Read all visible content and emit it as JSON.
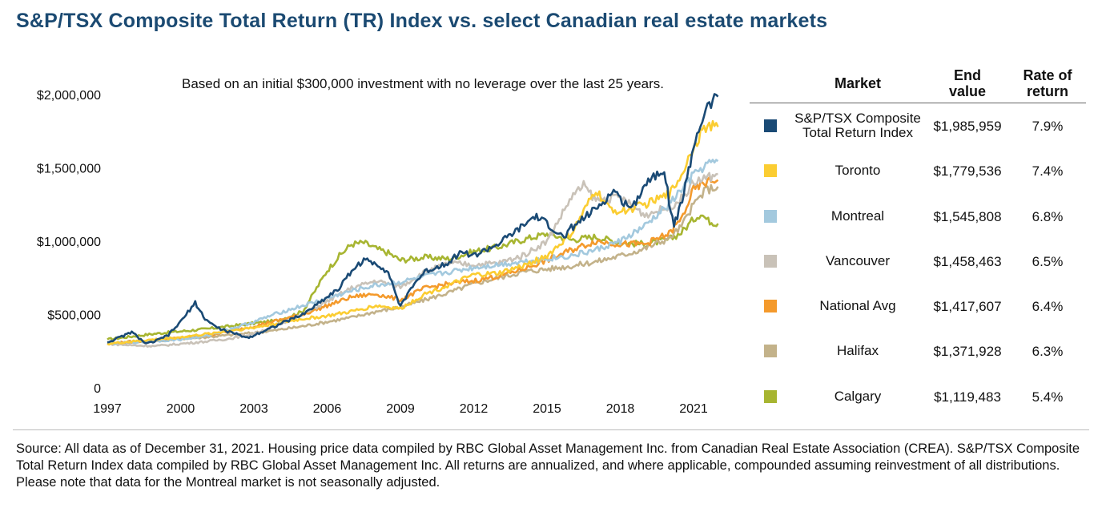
{
  "title": "S&P/TSX Composite Total Return (TR) Index vs. select Canadian real estate markets",
  "source_note": "Source: All data as of December 31, 2021. Housing price data compiled by RBC Global Asset Management Inc. from Canadian Real Estate Association (CREA). S&P/TSX Composite Total Return Index data compiled by RBC Global Asset Management Inc. All returns are annualized, and where applicable, compounded assuming reinvestment of all distributions. Please note that data for the Montreal market is not seasonally adjusted.",
  "table": {
    "headers": {
      "market": "Market",
      "end_value": [
        "End",
        "value"
      ],
      "rate": [
        "Rate of",
        "return"
      ]
    },
    "rows": [
      {
        "market": [
          "S&P/TSX Composite",
          "Total Return Index"
        ],
        "end_value": "$1,985,959",
        "rate": "7.9%",
        "color": "#1a4a75"
      },
      {
        "market": [
          "Toronto"
        ],
        "end_value": "$1,779,536",
        "rate": "7.4%",
        "color": "#fbcd32"
      },
      {
        "market": [
          "Montreal"
        ],
        "end_value": "$1,545,808",
        "rate": "6.8%",
        "color": "#a3c9de"
      },
      {
        "market": [
          "Vancouver"
        ],
        "end_value": "$1,458,463",
        "rate": "6.5%",
        "color": "#c9c2b8"
      },
      {
        "market": [
          "National Avg"
        ],
        "end_value": "$1,417,607",
        "rate": "6.4%",
        "color": "#f49a2c"
      },
      {
        "market": [
          "Halifax"
        ],
        "end_value": "$1,371,928",
        "rate": "6.3%",
        "color": "#c3b28a"
      },
      {
        "market": [
          "Calgary"
        ],
        "end_value": "$1,119,483",
        "rate": "5.4%",
        "color": "#a7b531"
      }
    ]
  },
  "chart_data": {
    "type": "line",
    "annotation": "Based on an initial $300,000 investment with no leverage over the last 25 years.",
    "y_ticks": [
      {
        "value": 0,
        "label": "0"
      },
      {
        "value": 500000,
        "label": "$500,000"
      },
      {
        "value": 1000000,
        "label": "$1,000,000"
      },
      {
        "value": 1500000,
        "label": "$1,500,000"
      },
      {
        "value": 2000000,
        "label": "$2,000,000"
      }
    ],
    "x_ticks": [
      1997,
      2000,
      2003,
      2006,
      2009,
      2012,
      2015,
      2018,
      2021
    ],
    "xlim": [
      1997,
      2022
    ],
    "ylim": [
      0,
      2000000
    ],
    "series": [
      {
        "name": "Calgary",
        "color": "#a7b531",
        "points": [
          [
            1997,
            330000
          ],
          [
            1998,
            350000
          ],
          [
            1999,
            370000
          ],
          [
            2000,
            385000
          ],
          [
            2001,
            400000
          ],
          [
            2002,
            420000
          ],
          [
            2003,
            440000
          ],
          [
            2004,
            460000
          ],
          [
            2005,
            520000
          ],
          [
            2006,
            800000
          ],
          [
            2006.5,
            900000
          ],
          [
            2007,
            980000
          ],
          [
            2007.5,
            990000
          ],
          [
            2008,
            950000
          ],
          [
            2008.5,
            920000
          ],
          [
            2009,
            870000
          ],
          [
            2009.5,
            880000
          ],
          [
            2010,
            890000
          ],
          [
            2011,
            880000
          ],
          [
            2012,
            930000
          ],
          [
            2013,
            960000
          ],
          [
            2014,
            1010000
          ],
          [
            2015,
            1050000
          ],
          [
            2016,
            1010000
          ],
          [
            2017,
            1030000
          ],
          [
            2018,
            990000
          ],
          [
            2019,
            980000
          ],
          [
            2020,
            1010000
          ],
          [
            2020.5,
            1060000
          ],
          [
            2021,
            1150000
          ],
          [
            2021.3,
            1190000
          ],
          [
            2021.6,
            1140000
          ],
          [
            2022,
            1119483
          ]
        ]
      },
      {
        "name": "Halifax",
        "color": "#c3b28a",
        "points": [
          [
            1997,
            300000
          ],
          [
            1998,
            310000
          ],
          [
            1999,
            320000
          ],
          [
            2000,
            335000
          ],
          [
            2001,
            345000
          ],
          [
            2002,
            360000
          ],
          [
            2003,
            375000
          ],
          [
            2004,
            395000
          ],
          [
            2005,
            420000
          ],
          [
            2006,
            450000
          ],
          [
            2007,
            480000
          ],
          [
            2008,
            520000
          ],
          [
            2009,
            550000
          ],
          [
            2010,
            600000
          ],
          [
            2011,
            650000
          ],
          [
            2012,
            710000
          ],
          [
            2013,
            750000
          ],
          [
            2014,
            790000
          ],
          [
            2015,
            810000
          ],
          [
            2016,
            830000
          ],
          [
            2017,
            860000
          ],
          [
            2018,
            900000
          ],
          [
            2019,
            950000
          ],
          [
            2020,
            1020000
          ],
          [
            2020.5,
            1100000
          ],
          [
            2021,
            1250000
          ],
          [
            2021.5,
            1350000
          ],
          [
            2022,
            1371928
          ]
        ]
      },
      {
        "name": "National Avg",
        "color": "#f49a2c",
        "points": [
          [
            1997,
            300000
          ],
          [
            1998,
            315000
          ],
          [
            1999,
            325000
          ],
          [
            2000,
            340000
          ],
          [
            2001,
            355000
          ],
          [
            2002,
            385000
          ],
          [
            2003,
            420000
          ],
          [
            2004,
            460000
          ],
          [
            2005,
            500000
          ],
          [
            2006,
            560000
          ],
          [
            2007,
            620000
          ],
          [
            2008,
            640000
          ],
          [
            2009,
            600000
          ],
          [
            2010,
            680000
          ],
          [
            2011,
            710000
          ],
          [
            2012,
            730000
          ],
          [
            2013,
            760000
          ],
          [
            2014,
            810000
          ],
          [
            2015,
            870000
          ],
          [
            2016,
            940000
          ],
          [
            2017,
            1000000
          ],
          [
            2018,
            980000
          ],
          [
            2019,
            980000
          ],
          [
            2020,
            1050000
          ],
          [
            2020.5,
            1150000
          ],
          [
            2021,
            1350000
          ],
          [
            2021.5,
            1400000
          ],
          [
            2022,
            1417607
          ]
        ]
      },
      {
        "name": "Vancouver",
        "color": "#c9c2b8",
        "points": [
          [
            1997,
            300000
          ],
          [
            1998,
            290000
          ],
          [
            1999,
            285000
          ],
          [
            2000,
            300000
          ],
          [
            2001,
            315000
          ],
          [
            2002,
            335000
          ],
          [
            2003,
            370000
          ],
          [
            2004,
            430000
          ],
          [
            2005,
            500000
          ],
          [
            2006,
            590000
          ],
          [
            2007,
            680000
          ],
          [
            2008,
            730000
          ],
          [
            2009,
            690000
          ],
          [
            2010,
            790000
          ],
          [
            2011,
            850000
          ],
          [
            2012,
            840000
          ],
          [
            2013,
            850000
          ],
          [
            2014,
            900000
          ],
          [
            2015,
            1000000
          ],
          [
            2016,
            1300000
          ],
          [
            2016.5,
            1380000
          ],
          [
            2017,
            1280000
          ],
          [
            2018,
            1300000
          ],
          [
            2019,
            1180000
          ],
          [
            2020,
            1230000
          ],
          [
            2020.5,
            1290000
          ],
          [
            2021,
            1400000
          ],
          [
            2022,
            1458463
          ]
        ]
      },
      {
        "name": "Montreal",
        "color": "#a3c9de",
        "points": [
          [
            1997,
            300000
          ],
          [
            1998,
            310000
          ],
          [
            1999,
            320000
          ],
          [
            2000,
            330000
          ],
          [
            2001,
            350000
          ],
          [
            2002,
            400000
          ],
          [
            2003,
            450000
          ],
          [
            2004,
            510000
          ],
          [
            2005,
            560000
          ],
          [
            2006,
            610000
          ],
          [
            2007,
            660000
          ],
          [
            2008,
            700000
          ],
          [
            2009,
            720000
          ],
          [
            2010,
            760000
          ],
          [
            2011,
            790000
          ],
          [
            2012,
            820000
          ],
          [
            2013,
            840000
          ],
          [
            2014,
            860000
          ],
          [
            2015,
            880000
          ],
          [
            2016,
            900000
          ],
          [
            2017,
            940000
          ],
          [
            2018,
            1000000
          ],
          [
            2019,
            1100000
          ],
          [
            2020,
            1250000
          ],
          [
            2021,
            1450000
          ],
          [
            2021.5,
            1520000
          ],
          [
            2022,
            1545808
          ]
        ]
      },
      {
        "name": "Toronto",
        "color": "#fbcd32",
        "points": [
          [
            1997,
            300000
          ],
          [
            1998,
            315000
          ],
          [
            1999,
            330000
          ],
          [
            2000,
            345000
          ],
          [
            2001,
            365000
          ],
          [
            2002,
            390000
          ],
          [
            2003,
            410000
          ],
          [
            2004,
            440000
          ],
          [
            2005,
            470000
          ],
          [
            2006,
            490000
          ],
          [
            2007,
            520000
          ],
          [
            2008,
            560000
          ],
          [
            2009,
            540000
          ],
          [
            2010,
            640000
          ],
          [
            2011,
            700000
          ],
          [
            2012,
            770000
          ],
          [
            2013,
            780000
          ],
          [
            2014,
            830000
          ],
          [
            2015,
            900000
          ],
          [
            2016,
            1050000
          ],
          [
            2017,
            1350000
          ],
          [
            2017.5,
            1230000
          ],
          [
            2018,
            1200000
          ],
          [
            2019,
            1250000
          ],
          [
            2020,
            1320000
          ],
          [
            2020.5,
            1450000
          ],
          [
            2021,
            1650000
          ],
          [
            2021.5,
            1780000
          ],
          [
            2022,
            1779536
          ]
        ]
      },
      {
        "name": "S&P/TSX Composite Total Return Index",
        "color": "#1a4a75",
        "points": [
          [
            1997,
            310000
          ],
          [
            1997.6,
            350000
          ],
          [
            1998,
            380000
          ],
          [
            1998.6,
            300000
          ],
          [
            1999,
            320000
          ],
          [
            1999.5,
            360000
          ],
          [
            2000,
            450000
          ],
          [
            2000.6,
            580000
          ],
          [
            2001,
            470000
          ],
          [
            2001.5,
            410000
          ],
          [
            2002,
            380000
          ],
          [
            2002.8,
            340000
          ],
          [
            2003,
            360000
          ],
          [
            2004,
            430000
          ],
          [
            2005,
            500000
          ],
          [
            2006,
            620000
          ],
          [
            2006.5,
            680000
          ],
          [
            2007,
            800000
          ],
          [
            2007.5,
            870000
          ],
          [
            2008,
            850000
          ],
          [
            2008.5,
            790000
          ],
          [
            2009,
            550000
          ],
          [
            2009.5,
            700000
          ],
          [
            2010,
            790000
          ],
          [
            2011,
            860000
          ],
          [
            2011.5,
            930000
          ],
          [
            2012,
            900000
          ],
          [
            2013,
            980000
          ],
          [
            2014,
            1100000
          ],
          [
            2014.5,
            1170000
          ],
          [
            2015,
            1120000
          ],
          [
            2015.7,
            1020000
          ],
          [
            2016,
            1090000
          ],
          [
            2017,
            1220000
          ],
          [
            2017.8,
            1350000
          ],
          [
            2018,
            1280000
          ],
          [
            2018.5,
            1230000
          ],
          [
            2019,
            1390000
          ],
          [
            2019.8,
            1500000
          ],
          [
            2020,
            1270000
          ],
          [
            2020.2,
            1100000
          ],
          [
            2020.6,
            1320000
          ],
          [
            2021,
            1650000
          ],
          [
            2021.5,
            1900000
          ],
          [
            2022,
            1985959
          ]
        ]
      }
    ]
  }
}
